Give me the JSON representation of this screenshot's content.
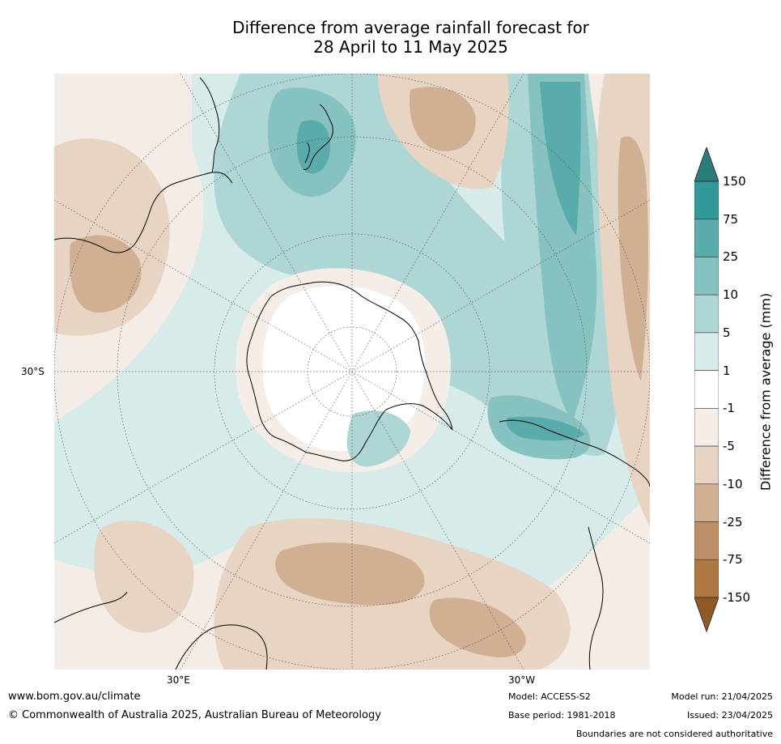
{
  "title_line1": "Difference from average rainfall forecast for",
  "title_line2": "28 April to 11 May 2025",
  "map": {
    "projection": "south polar stereographic",
    "lat_label": "30°S",
    "lon_labels": [
      "30°E",
      "30°W"
    ]
  },
  "colorbar": {
    "title": "Difference from average (mm)",
    "ticks": [
      "150",
      "75",
      "25",
      "10",
      "5",
      "1",
      "-1",
      "-5",
      "-10",
      "-25",
      "-75",
      "-150"
    ],
    "colors": [
      "#2a7c7a",
      "#31999a",
      "#5aabab",
      "#86c2c0",
      "#aed6d5",
      "#d6ebea",
      "#ffffff",
      "#f5ede8",
      "#e7d4c3",
      "#d0af93",
      "#bd8f67",
      "#ad7842",
      "#8f5a25"
    ]
  },
  "footer": {
    "url": "www.bom.gov.au/climate",
    "copyright": "© Commonwealth of Australia 2025, Australian Bureau of Meteorology",
    "model": "Model: ACCESS-S2",
    "base_period": "Base period: 1981-2018",
    "model_run": "Model run: 21/04/2025",
    "issued": "Issued: 23/04/2025",
    "disclaimer": "Boundaries are not considered authoritative"
  }
}
